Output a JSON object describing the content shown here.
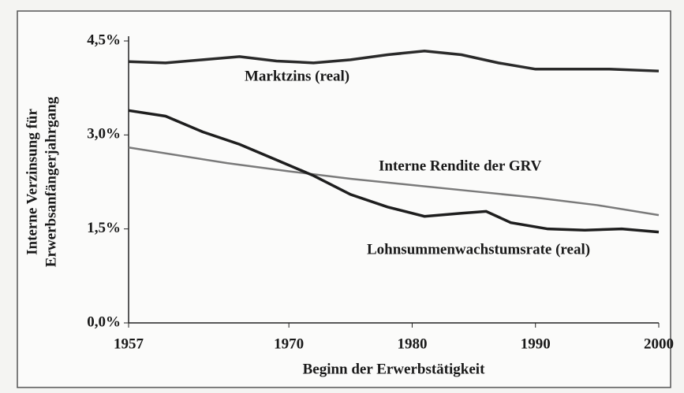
{
  "chart_data": {
    "type": "line",
    "ylabel": [
      "Interne Verzinsung für",
      "Erwerbsanfängerjahrgang"
    ],
    "xlabel": "Beginn der Erwerbstätigkeit",
    "xlim": [
      1957,
      2000
    ],
    "xticks": [
      1957,
      1970,
      1980,
      1990,
      2000
    ],
    "ylim": [
      0,
      4.5
    ],
    "yticks": [
      {
        "value": 0,
        "label": "0,0%"
      },
      {
        "value": 1.5,
        "label": "1,5%"
      },
      {
        "value": 3,
        "label": "3,0%"
      },
      {
        "value": 4.5,
        "label": "4,5%"
      }
    ],
    "series": [
      {
        "name": "Marktzins (real)",
        "color": "#2a2a2a",
        "x": [
          1957,
          1960,
          1963,
          1966,
          1969,
          1972,
          1975,
          1978,
          1981,
          1984,
          1987,
          1990,
          1993,
          1996,
          2000
        ],
        "values": [
          4.17,
          4.15,
          4.2,
          4.25,
          4.18,
          4.15,
          4.2,
          4.28,
          4.34,
          4.28,
          4.15,
          4.05,
          4.05,
          4.05,
          4.02
        ]
      },
      {
        "name": "Interne Rendite der GRV",
        "color": "#7a7a7a",
        "x": [
          1957,
          1965,
          1970,
          1975,
          1980,
          1985,
          1990,
          1995,
          2000
        ],
        "values": [
          2.8,
          2.55,
          2.42,
          2.3,
          2.2,
          2.1,
          2.0,
          1.88,
          1.72
        ]
      },
      {
        "name": "Lohnsummenwachstumsrate (real)",
        "color": "#1e1e1e",
        "x": [
          1957,
          1960,
          1963,
          1966,
          1969,
          1972,
          1975,
          1978,
          1981,
          1984,
          1986,
          1988,
          1991,
          1994,
          1997,
          2000
        ],
        "values": [
          3.39,
          3.3,
          3.05,
          2.85,
          2.6,
          2.35,
          2.05,
          1.85,
          1.7,
          1.75,
          1.78,
          1.6,
          1.5,
          1.48,
          1.5,
          1.45
        ]
      }
    ]
  }
}
